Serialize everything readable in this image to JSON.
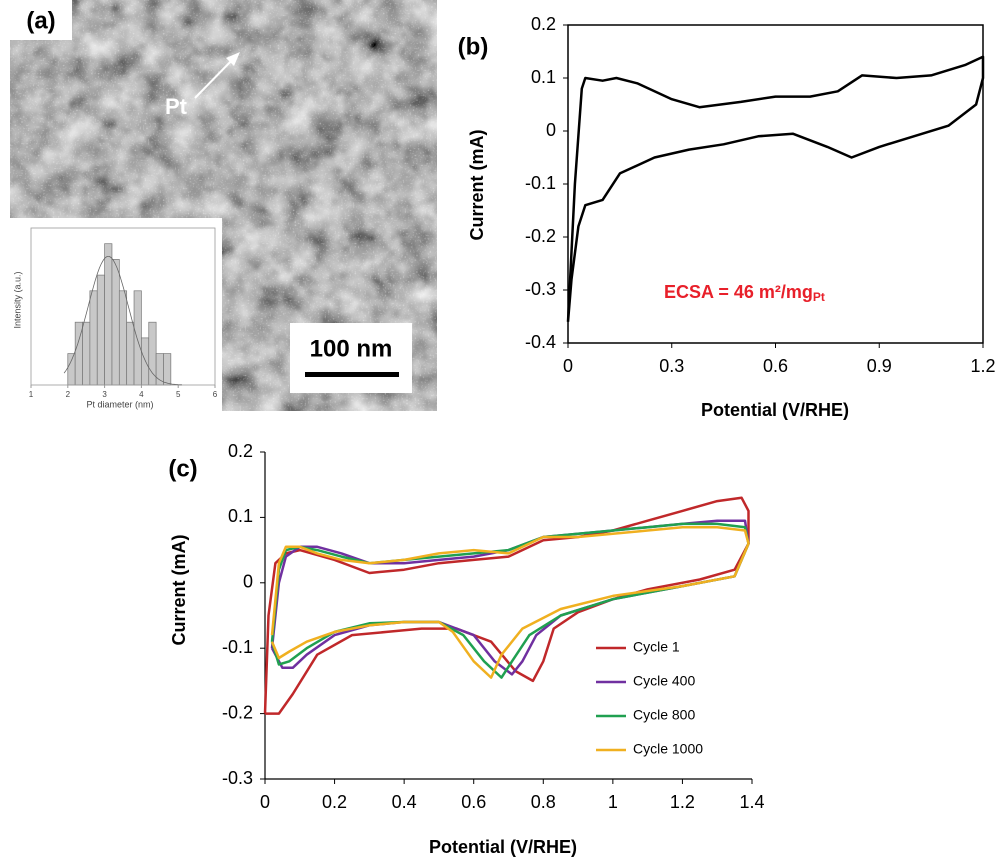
{
  "chart_data": [
    {
      "type": "histogram",
      "panel_label": "(a)",
      "annotations": [
        "Pt",
        "100 nm"
      ],
      "xlabel": "Pt diameter (nm)",
      "ylabel": "Intensity (a.u.)",
      "bins": [
        2.0,
        2.2,
        2.4,
        2.6,
        2.8,
        3.0,
        3.2,
        3.4,
        3.6,
        3.8,
        4.0,
        4.2,
        4.4,
        4.6,
        4.8
      ],
      "values": [
        2,
        4,
        4,
        6,
        7,
        9,
        8,
        6,
        4,
        6,
        3,
        4,
        2,
        2
      ],
      "color": "#c8c8c8",
      "xlim": [
        1,
        6
      ],
      "xticks": [
        1,
        2,
        3,
        4,
        5,
        6
      ],
      "ylim": [
        0,
        10
      ]
    },
    {
      "type": "line",
      "panel_label": "(b)",
      "xlabel": "Potential (V/RHE)",
      "ylabel": "Current (mA)",
      "annotation": "ECSA = 46 m²/mg",
      "annotation_sub": "Pt",
      "annotation_color": "#e8202a",
      "xlim": [
        0,
        1.2
      ],
      "xticks": [
        0,
        0.3,
        0.6,
        0.9,
        1.2
      ],
      "ylim": [
        -0.4,
        0.2
      ],
      "yticks": [
        0.2,
        0.1,
        0,
        -0.1,
        -0.2,
        -0.3,
        -0.4
      ],
      "frame": true,
      "series": [
        {
          "color": "#000000",
          "x": [
            0,
            0.02,
            0.04,
            0.05,
            0.1,
            0.14,
            0.2,
            0.3,
            0.38,
            0.5,
            0.6,
            0.7,
            0.78,
            0.85,
            0.95,
            1.05,
            1.15,
            1.2,
            1.2,
            1.18,
            1.1,
            1.0,
            0.9,
            0.82,
            0.75,
            0.65,
            0.55,
            0.45,
            0.35,
            0.25,
            0.15,
            0.1,
            0.05,
            0.03,
            0.01,
            0
          ],
          "values": [
            -0.36,
            -0.1,
            0.08,
            0.1,
            0.095,
            0.1,
            0.09,
            0.06,
            0.045,
            0.055,
            0.065,
            0.065,
            0.075,
            0.105,
            0.1,
            0.105,
            0.125,
            0.14,
            0.1,
            0.05,
            0.01,
            -0.01,
            -0.03,
            -0.05,
            -0.03,
            -0.005,
            -0.01,
            -0.025,
            -0.035,
            -0.05,
            -0.08,
            -0.13,
            -0.14,
            -0.18,
            -0.28,
            -0.36
          ]
        }
      ]
    },
    {
      "type": "line",
      "panel_label": "(c)",
      "xlabel": "Potential (V/RHE)",
      "ylabel": "Current (mA)",
      "xlim": [
        0,
        1.4
      ],
      "xticks": [
        0,
        0.2,
        0.4,
        0.6,
        0.8,
        1,
        1.2,
        1.4
      ],
      "ylim": [
        -0.3,
        0.2
      ],
      "yticks": [
        0.2,
        0.1,
        0,
        -0.1,
        -0.2,
        -0.3
      ],
      "frame": false,
      "series": [
        {
          "name": "Cycle 1",
          "color": "#c0282a",
          "x": [
            0.0,
            0.01,
            0.03,
            0.06,
            0.1,
            0.2,
            0.3,
            0.4,
            0.5,
            0.6,
            0.7,
            0.8,
            0.9,
            1.0,
            1.1,
            1.2,
            1.3,
            1.37,
            1.39,
            1.39,
            1.35,
            1.25,
            1.1,
            1.0,
            0.9,
            0.83,
            0.8,
            0.77,
            0.72,
            0.65,
            0.55,
            0.45,
            0.35,
            0.25,
            0.15,
            0.08,
            0.04,
            0.0
          ],
          "values": [
            -0.2,
            -0.05,
            0.03,
            0.045,
            0.05,
            0.035,
            0.015,
            0.02,
            0.03,
            0.035,
            0.04,
            0.065,
            0.07,
            0.08,
            0.095,
            0.11,
            0.125,
            0.13,
            0.11,
            0.06,
            0.02,
            0.005,
            -0.01,
            -0.025,
            -0.045,
            -0.07,
            -0.12,
            -0.15,
            -0.135,
            -0.09,
            -0.07,
            -0.07,
            -0.075,
            -0.08,
            -0.11,
            -0.17,
            -0.2,
            -0.2
          ]
        },
        {
          "name": "Cycle 400",
          "color": "#7030a0",
          "x": [
            0.02,
            0.04,
            0.06,
            0.1,
            0.15,
            0.22,
            0.3,
            0.4,
            0.5,
            0.6,
            0.7,
            0.8,
            0.9,
            1.0,
            1.1,
            1.2,
            1.3,
            1.38,
            1.39,
            1.35,
            1.2,
            1.0,
            0.85,
            0.78,
            0.74,
            0.71,
            0.66,
            0.6,
            0.5,
            0.4,
            0.3,
            0.2,
            0.12,
            0.08,
            0.05,
            0.02
          ],
          "values": [
            -0.1,
            0.0,
            0.04,
            0.055,
            0.055,
            0.045,
            0.03,
            0.03,
            0.035,
            0.04,
            0.05,
            0.07,
            0.075,
            0.08,
            0.085,
            0.09,
            0.095,
            0.095,
            0.06,
            0.01,
            -0.005,
            -0.025,
            -0.05,
            -0.08,
            -0.12,
            -0.14,
            -0.12,
            -0.08,
            -0.06,
            -0.06,
            -0.065,
            -0.08,
            -0.11,
            -0.13,
            -0.13,
            -0.1
          ]
        },
        {
          "name": "Cycle 800",
          "color": "#20a050",
          "x": [
            0.02,
            0.04,
            0.06,
            0.1,
            0.15,
            0.22,
            0.3,
            0.4,
            0.5,
            0.6,
            0.7,
            0.8,
            0.9,
            1.0,
            1.1,
            1.2,
            1.3,
            1.38,
            1.39,
            1.35,
            1.2,
            1.0,
            0.85,
            0.76,
            0.71,
            0.68,
            0.63,
            0.57,
            0.5,
            0.4,
            0.3,
            0.2,
            0.12,
            0.07,
            0.04,
            0.02
          ],
          "values": [
            -0.09,
            0.02,
            0.05,
            0.055,
            0.05,
            0.04,
            0.03,
            0.035,
            0.04,
            0.045,
            0.05,
            0.07,
            0.075,
            0.08,
            0.085,
            0.09,
            0.09,
            0.085,
            0.06,
            0.01,
            -0.005,
            -0.025,
            -0.05,
            -0.08,
            -0.12,
            -0.145,
            -0.12,
            -0.08,
            -0.06,
            -0.06,
            -0.062,
            -0.075,
            -0.1,
            -0.12,
            -0.125,
            -0.09
          ]
        },
        {
          "name": "Cycle 1000",
          "color": "#f0b020",
          "x": [
            0.02,
            0.04,
            0.06,
            0.1,
            0.15,
            0.22,
            0.3,
            0.4,
            0.5,
            0.6,
            0.7,
            0.8,
            0.9,
            1.0,
            1.1,
            1.2,
            1.3,
            1.38,
            1.39,
            1.35,
            1.2,
            1.0,
            0.85,
            0.74,
            0.68,
            0.65,
            0.6,
            0.54,
            0.5,
            0.4,
            0.3,
            0.2,
            0.12,
            0.07,
            0.04,
            0.02
          ],
          "values": [
            -0.08,
            0.03,
            0.055,
            0.055,
            0.045,
            0.035,
            0.03,
            0.035,
            0.045,
            0.05,
            0.045,
            0.07,
            0.07,
            0.075,
            0.08,
            0.085,
            0.085,
            0.08,
            0.06,
            0.01,
            -0.005,
            -0.02,
            -0.04,
            -0.07,
            -0.11,
            -0.145,
            -0.12,
            -0.075,
            -0.06,
            -0.06,
            -0.065,
            -0.075,
            -0.09,
            -0.105,
            -0.115,
            -0.09
          ]
        }
      ],
      "legend": "right"
    }
  ]
}
